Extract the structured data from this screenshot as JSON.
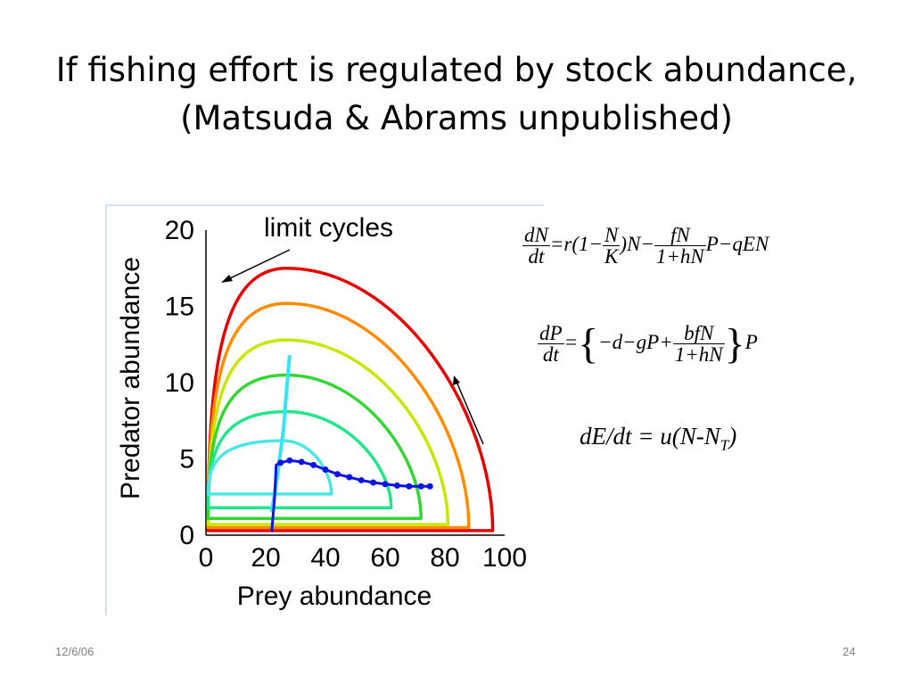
{
  "slide": {
    "title_line1": "If fishing effort is regulated by stock abundance,",
    "title_line2": "(Matsuda & Abrams unpublished)",
    "date": "12/6/06",
    "page_number": "24"
  },
  "equations": {
    "eq1": {
      "lhs_num": "dN",
      "lhs_den": "dt",
      "part1": "=r(1−",
      "f1_num": "N",
      "f1_den": "K",
      "part2": ")N−",
      "f2_num": "fN",
      "f2_den": "1+hN",
      "part3": "P−qEN"
    },
    "eq2": {
      "lhs_num": "dP",
      "lhs_den": "dt",
      "part1": "=",
      "brace_open": "{",
      "inner": "−d−gP+",
      "f_num": "bfN",
      "f_den": "1+hN",
      "brace_close": "}",
      "tail": "P"
    },
    "eq3": "dE/dt = u(N-N",
    "eq3_sub": "T",
    "eq3_tail": ")"
  },
  "chart_data": {
    "type": "line",
    "xlabel": "Prey abundance",
    "ylabel": "Predator abundance",
    "xlim": [
      0,
      100
    ],
    "ylim": [
      0,
      20
    ],
    "xticks": [
      0,
      20,
      40,
      60,
      80,
      100
    ],
    "yticks": [
      0,
      5,
      10,
      15,
      20
    ],
    "annotation": "limit cycles",
    "grid": false,
    "limit_cycles": [
      {
        "color": "#e60000",
        "peak": [
          27,
          17.5
        ],
        "x_max": 96,
        "y_min": 0.3
      },
      {
        "color": "#ff8c00",
        "peak": [
          27,
          15.2
        ],
        "x_max": 88,
        "y_min": 0.5
      },
      {
        "color": "#c7e600",
        "peak": [
          27,
          12.8
        ],
        "x_max": 81,
        "y_min": 0.7
      },
      {
        "color": "#33d633",
        "peak": [
          27,
          10.5
        ],
        "x_max": 72,
        "y_min": 1.1
      },
      {
        "color": "#22e68c",
        "peak": [
          27,
          8.1
        ],
        "x_max": 62,
        "y_min": 1.8
      },
      {
        "color": "#4de6e6",
        "peak": [
          26,
          6.2
        ],
        "x_max": 42,
        "y_min": 2.7
      }
    ],
    "series": [
      {
        "color": "#33e6f2",
        "x": [
          22,
          24,
          26,
          27,
          28
        ],
        "y": [
          1.5,
          4,
          7,
          9.5,
          11.8
        ]
      },
      {
        "color": "#0a14e6",
        "x": [
          22,
          23,
          23.5,
          25,
          28,
          32,
          36,
          40,
          44,
          48,
          52,
          56,
          60,
          64,
          68,
          72,
          75
        ],
        "y": [
          0.2,
          2.5,
          4.6,
          4.75,
          4.9,
          4.8,
          4.6,
          4.3,
          4.0,
          3.8,
          3.6,
          3.45,
          3.35,
          3.25,
          3.2,
          3.2,
          3.2
        ]
      }
    ]
  }
}
